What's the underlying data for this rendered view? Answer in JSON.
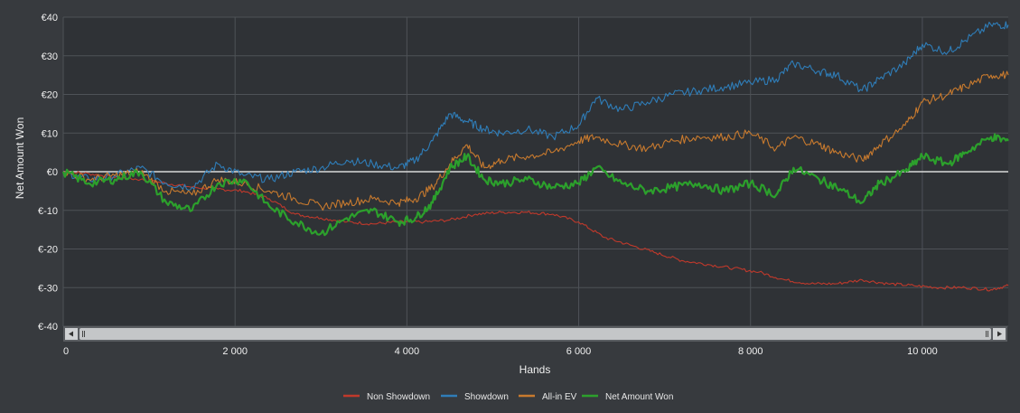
{
  "colors": {
    "background": "#373a3e",
    "plot_background": "#2f3236",
    "grid": "#4e5257",
    "zero_line": "#d9d9d9",
    "scrollbar_track": "#c4c6c8",
    "scrollbar_thumb": "#8a8d90"
  },
  "chart_data": {
    "type": "line",
    "xlabel": "Hands",
    "ylabel": "Net Amount Won",
    "xlim": [
      0,
      11000
    ],
    "ylim": [
      -40,
      40
    ],
    "x_ticks": [
      0,
      2000,
      4000,
      6000,
      8000,
      10000
    ],
    "x_tick_labels": [
      "0",
      "2 000",
      "4 000",
      "6 000",
      "8 000",
      "10 000"
    ],
    "y_ticks": [
      40,
      30,
      20,
      10,
      0,
      -10,
      -20,
      -30,
      -40
    ],
    "y_tick_labels": [
      "€40",
      "€30",
      "€20",
      "€10",
      "€0",
      "€-10",
      "€-20",
      "€-30",
      "€-40"
    ],
    "grid": true,
    "legend_position": "bottom-center",
    "series": [
      {
        "name": "Non Showdown",
        "color": "#c0392b",
        "x": [
          0,
          300,
          600,
          900,
          1200,
          1500,
          1800,
          2100,
          2400,
          2700,
          3000,
          3300,
          3600,
          3900,
          4200,
          4500,
          4800,
          5100,
          5400,
          5700,
          6000,
          6300,
          6600,
          6900,
          7200,
          7500,
          7800,
          8100,
          8400,
          8700,
          9000,
          9300,
          9600,
          9900,
          10200,
          10500,
          10800,
          11000
        ],
        "values": [
          0,
          -0.5,
          -1.5,
          -2,
          -3,
          -4,
          -4.5,
          -5,
          -7,
          -11,
          -12,
          -13,
          -13.5,
          -13,
          -13,
          -12.5,
          -11,
          -10.5,
          -10.5,
          -11,
          -13,
          -17,
          -19,
          -21,
          -23,
          -24,
          -25,
          -26,
          -28,
          -29,
          -29,
          -28,
          -29,
          -29.5,
          -30,
          -30,
          -30.5,
          -29.5
        ]
      },
      {
        "name": "Showdown",
        "color": "#2f7db8",
        "x": [
          0,
          300,
          600,
          900,
          1200,
          1500,
          1800,
          2100,
          2400,
          2700,
          3000,
          3300,
          3600,
          3900,
          4100,
          4300,
          4500,
          4700,
          4900,
          5100,
          5400,
          5700,
          6000,
          6200,
          6500,
          6800,
          7100,
          7400,
          7700,
          8000,
          8300,
          8500,
          8800,
          9000,
          9300,
          9500,
          9800,
          10000,
          10300,
          10500,
          10800,
          11000
        ],
        "values": [
          0,
          -2,
          -1,
          1,
          -3,
          -4,
          2,
          -1,
          -2,
          0,
          1,
          3,
          2,
          1,
          3,
          8,
          15,
          13,
          11,
          10,
          11,
          9,
          12,
          19,
          16,
          18,
          20,
          21,
          22,
          23,
          24,
          28,
          26,
          25,
          21,
          24,
          28,
          33,
          31,
          34,
          38,
          38
        ]
      },
      {
        "name": "All-in EV",
        "color": "#c87a2e",
        "x": [
          0,
          300,
          600,
          900,
          1200,
          1500,
          1800,
          2100,
          2400,
          2700,
          3000,
          3300,
          3600,
          3900,
          4100,
          4300,
          4500,
          4700,
          4900,
          5100,
          5400,
          5700,
          6000,
          6200,
          6500,
          6800,
          7100,
          7400,
          7700,
          8000,
          8300,
          8500,
          8800,
          9000,
          9300,
          9500,
          9800,
          10000,
          10300,
          10500,
          10800,
          11000
        ],
        "values": [
          0,
          -2,
          -1,
          0,
          -5,
          -6,
          -2,
          -3,
          -5,
          -7,
          -9,
          -8,
          -7,
          -8,
          -7,
          -4,
          2,
          7,
          1,
          3,
          4,
          5,
          8,
          9,
          7,
          6,
          8,
          9,
          9,
          10,
          6,
          9,
          7,
          5,
          3,
          7,
          12,
          18,
          20,
          22,
          25,
          25
        ]
      },
      {
        "name": "Net Amount Won",
        "color": "#2ca02c",
        "x": [
          0,
          300,
          600,
          900,
          1200,
          1500,
          1800,
          2100,
          2400,
          2700,
          3000,
          3300,
          3600,
          3900,
          4100,
          4300,
          4500,
          4700,
          4900,
          5100,
          5400,
          5700,
          6000,
          6200,
          6500,
          6800,
          7100,
          7400,
          7700,
          8000,
          8300,
          8500,
          8800,
          9000,
          9300,
          9500,
          9800,
          10000,
          10300,
          10500,
          10800,
          11000
        ],
        "values": [
          0,
          -3,
          -2,
          0,
          -8,
          -10,
          -3,
          -2,
          -9,
          -13,
          -16,
          -12,
          -10,
          -13,
          -12,
          -8,
          1,
          4,
          -2,
          -3,
          -2,
          -4,
          -3,
          1,
          -3,
          -5,
          -4,
          -3,
          -5,
          -3,
          -6,
          1,
          -2,
          -4,
          -8,
          -3,
          0,
          4,
          2,
          5,
          9,
          8
        ]
      }
    ]
  }
}
